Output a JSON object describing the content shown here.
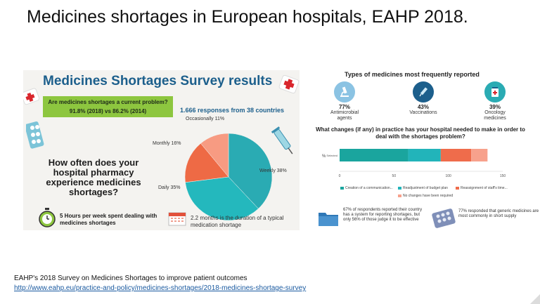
{
  "slide_title": "Medicines shortages in European hospitals, EAHP 2018.",
  "colors": {
    "brand_blue": "#1c5f8c",
    "green": "#8dc63f",
    "teal": "#2aabb3",
    "coral": "#f0775a",
    "orange": "#ee6a45",
    "salmon": "#f79b82"
  },
  "survey": {
    "title": "Medicines Shortages Survey results",
    "question_line1": "Are medicines shortages a current problem?",
    "question_line2": "91.8% (2018) vs 86.2% (2014)",
    "responses": "1.666 responses from 38 countries",
    "how_often": "How often does your hospital pharmacy experience medicines shortages?",
    "hours": "5 Hours per week spent dealing with medicines shortages",
    "months": "2.2 months is the duration of a typical medication shortage"
  },
  "chart_data": [
    {
      "type": "pie",
      "labels": [
        "Weekly 38%",
        "Daily 35%",
        "Monthly 16%",
        "Occasionally 11%"
      ],
      "values": [
        38,
        35,
        16,
        11
      ],
      "colors": [
        "#2aabb3",
        "#24b8bd",
        "#ee6a45",
        "#f79b82"
      ]
    },
    {
      "type": "bar",
      "title": "What changes (if any) in practice has your hospital needed to make in order to deal with the shortages problem?",
      "ylabel": "%",
      "category_label": "Selected",
      "series": [
        {
          "name": "Creation of a communication...",
          "value": 63,
          "color": "#1aa59e"
        },
        {
          "name": "Readjustment of budget plan",
          "value": 30,
          "color": "#22b4ba"
        },
        {
          "name": "Reassignment of staff's time...",
          "value": 28,
          "color": "#ef6c4b"
        },
        {
          "name": "No changes have been required",
          "value": 15,
          "color": "#f7a18c"
        }
      ],
      "xticks": [
        "0",
        "50",
        "100",
        "150"
      ],
      "xlim": [
        0,
        150
      ]
    }
  ],
  "types": {
    "title": "Types of medicines most frequently reported",
    "items": [
      {
        "pct": "77%",
        "label1": "Antimicrobial",
        "label2": "agents",
        "color": "#8bc3e3"
      },
      {
        "pct": "43%",
        "label1": "Vaccinations",
        "label2": "",
        "color": "#1c5f8c"
      },
      {
        "pct": "39%",
        "label1": "Oncology",
        "label2": "medicines",
        "color": "#2aabb3"
      }
    ]
  },
  "bottom_right": {
    "reporting": "67% of respondents reported their country has a system for reporting shortages, but only 56% of those judge it to be effective",
    "generic": "77% responded that generic medicines are most commonly in short supply"
  },
  "footer": {
    "caption": "EAHP's 2018 Survey on Medicines Shortages to improve patient outcomes",
    "url": "http://www.eahp.eu/practice-and-policy/medicines-shortages/2018-medicines-shortage-survey"
  }
}
